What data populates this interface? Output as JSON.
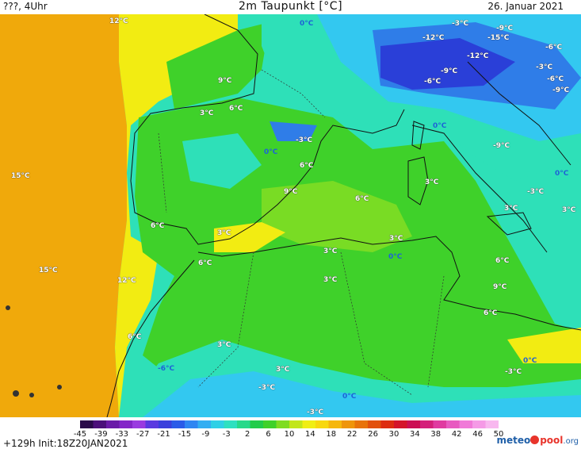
{
  "header": {
    "left": "???, 4Uhr",
    "title": "2m Taupunkt [°C]",
    "date": "26. Januar 2021"
  },
  "map_labels": [
    {
      "text": "12°C",
      "style": "white"
    },
    {
      "text": "0°C",
      "style": "blue"
    },
    {
      "text": "-3°C",
      "style": "white"
    },
    {
      "text": "-9°C",
      "style": "white"
    },
    {
      "text": "-12°C",
      "style": "white"
    },
    {
      "text": "-15°C",
      "style": "white"
    },
    {
      "text": "-6°C",
      "style": "white"
    },
    {
      "text": "-12°C",
      "style": "white"
    },
    {
      "text": "-9°C",
      "style": "white"
    },
    {
      "text": "-6°C",
      "style": "white"
    },
    {
      "text": "-3°C",
      "style": "white"
    },
    {
      "text": "-6°C",
      "style": "white"
    },
    {
      "text": "-9°C",
      "style": "white"
    },
    {
      "text": "9°C",
      "style": "white"
    },
    {
      "text": "6°C",
      "style": "white"
    },
    {
      "text": "3°C",
      "style": "white"
    },
    {
      "text": "-3°C",
      "style": "white"
    },
    {
      "text": "0°C",
      "style": "blue"
    },
    {
      "text": "0°C",
      "style": "blue"
    },
    {
      "text": "-9°C",
      "style": "white"
    },
    {
      "text": "15°C",
      "style": "white"
    },
    {
      "text": "6°C",
      "style": "white"
    },
    {
      "text": "9°C",
      "style": "white"
    },
    {
      "text": "6°C",
      "style": "white"
    },
    {
      "text": "3°C",
      "style": "white"
    },
    {
      "text": "0°C",
      "style": "blue"
    },
    {
      "text": "-3°C",
      "style": "white"
    },
    {
      "text": "3°C",
      "style": "white"
    },
    {
      "text": "3°C",
      "style": "white"
    },
    {
      "text": "6°C",
      "style": "white"
    },
    {
      "text": "3°C",
      "style": "white"
    },
    {
      "text": "3°C",
      "style": "white"
    },
    {
      "text": "6°C",
      "style": "white"
    },
    {
      "text": "0°C",
      "style": "blue"
    },
    {
      "text": "6°C",
      "style": "white"
    },
    {
      "text": "15°C",
      "style": "white"
    },
    {
      "text": "12°C",
      "style": "white"
    },
    {
      "text": "3°C",
      "style": "white"
    },
    {
      "text": "9°C",
      "style": "white"
    },
    {
      "text": "6°C",
      "style": "white"
    },
    {
      "text": "6°C",
      "style": "white"
    },
    {
      "text": "3°C",
      "style": "white"
    },
    {
      "text": "-6°C",
      "style": "blue"
    },
    {
      "text": "3°C",
      "style": "white"
    },
    {
      "text": "-3°C",
      "style": "white"
    },
    {
      "text": "3°C",
      "style": "white"
    },
    {
      "text": "-3°C",
      "style": "white"
    },
    {
      "text": "0°C",
      "style": "blue"
    },
    {
      "text": "0°C",
      "style": "blue"
    },
    {
      "text": "-3°C",
      "style": "white"
    }
  ],
  "colorbar": {
    "ticks": [
      "-45",
      "-39",
      "-33",
      "-27",
      "-21",
      "-15",
      "-9",
      "-3",
      "2",
      "6",
      "10",
      "14",
      "18",
      "22",
      "26",
      "30",
      "34",
      "38",
      "42",
      "46",
      "50"
    ],
    "colors": [
      "#2a0a4a",
      "#4b0f7a",
      "#6a1aa8",
      "#8426c8",
      "#9a3be0",
      "#5a3ae0",
      "#3a40dc",
      "#2a5be8",
      "#2f86f2",
      "#33aef2",
      "#2ed0e6",
      "#2ee0c0",
      "#27d98a",
      "#22cc4a",
      "#3fd12a",
      "#7fdc22",
      "#c2e61a",
      "#f0ee14",
      "#f8d80e",
      "#f6b70c",
      "#ef950a",
      "#e8730a",
      "#e2500c",
      "#dd2c10",
      "#d4142a",
      "#cc0e52",
      "#d4207a",
      "#e03aa0",
      "#e85ac0",
      "#f07ad8",
      "#f59ae6",
      "#f8b8ef"
    ]
  },
  "footer": {
    "run": "+129h Init:18Z20JAN2021",
    "brand_meteo": "meteo",
    "brand_pool": "pool",
    "brand_org": ".org"
  },
  "colors": {
    "ocean_west": "#f6c40d",
    "warm_orange": "#f0a90b",
    "yellow": "#f2ec12",
    "green": "#3fd12a",
    "light_green": "#79dc24",
    "teal": "#2ee0b8",
    "cyan": "#33c8f0",
    "blue": "#2f7de8",
    "dark_blue": "#2a3fd8"
  }
}
